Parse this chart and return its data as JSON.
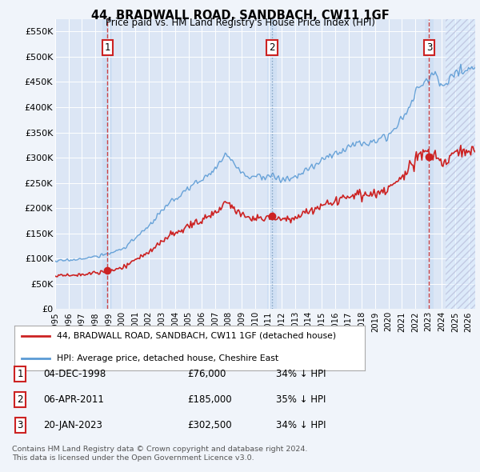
{
  "title": "44, BRADWALL ROAD, SANDBACH, CW11 1GF",
  "subtitle": "Price paid vs. HM Land Registry's House Price Index (HPI)",
  "ylim": [
    0,
    575000
  ],
  "yticks": [
    0,
    50000,
    100000,
    150000,
    200000,
    250000,
    300000,
    350000,
    400000,
    450000,
    500000,
    550000
  ],
  "ytick_labels": [
    "£0",
    "£50K",
    "£100K",
    "£150K",
    "£200K",
    "£250K",
    "£300K",
    "£350K",
    "£400K",
    "£450K",
    "£500K",
    "£550K"
  ],
  "fig_bg_color": "#f0f4fa",
  "plot_bg_color": "#dce6f5",
  "hpi_color": "#5b9bd5",
  "price_color": "#cc2222",
  "vline_color_red": "#cc3333",
  "vline_color_blue": "#7799bb",
  "purchase_dates_decimal": [
    1998.9167,
    2011.25,
    2023.0417
  ],
  "purchase_prices": [
    76000,
    185000,
    302500
  ],
  "purchase_labels": [
    "1",
    "2",
    "3"
  ],
  "legend_label_price": "44, BRADWALL ROAD, SANDBACH, CW11 1GF (detached house)",
  "legend_label_hpi": "HPI: Average price, detached house, Cheshire East",
  "table_data": [
    {
      "num": "1",
      "date": "04-DEC-1998",
      "price": "£76,000",
      "change": "34% ↓ HPI"
    },
    {
      "num": "2",
      "date": "06-APR-2011",
      "price": "£185,000",
      "change": "35% ↓ HPI"
    },
    {
      "num": "3",
      "date": "20-JAN-2023",
      "price": "£302,500",
      "change": "34% ↓ HPI"
    }
  ],
  "footer_line1": "Contains HM Land Registry data © Crown copyright and database right 2024.",
  "footer_line2": "This data is licensed under the Open Government Licence v3.0.",
  "xmin": 1995.0,
  "xmax": 2026.5,
  "xtick_years": [
    1995,
    1996,
    1997,
    1998,
    1999,
    2000,
    2001,
    2002,
    2003,
    2004,
    2005,
    2006,
    2007,
    2008,
    2009,
    2010,
    2011,
    2012,
    2013,
    2014,
    2015,
    2016,
    2017,
    2018,
    2019,
    2020,
    2021,
    2022,
    2023,
    2024,
    2025,
    2026
  ]
}
